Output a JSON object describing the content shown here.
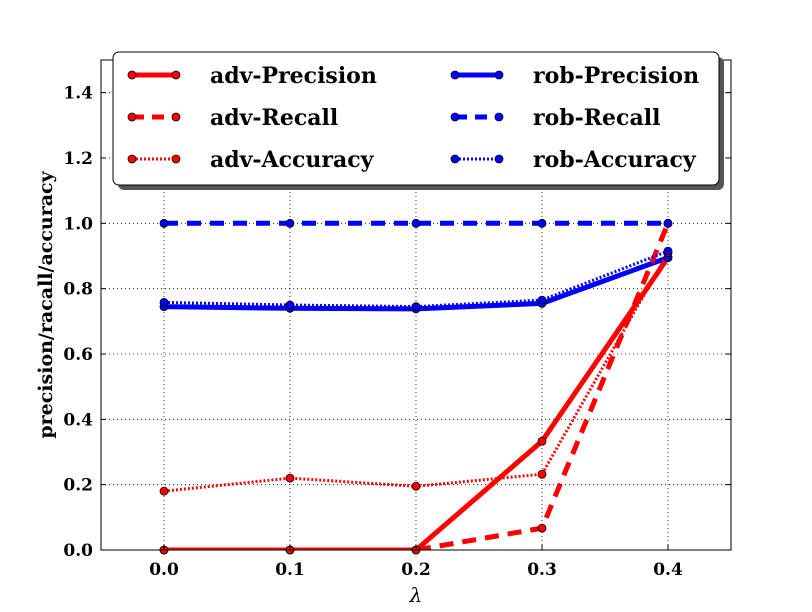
{
  "chart_data": {
    "type": "line",
    "title": "",
    "xlabel": "λ",
    "ylabel": "precision/racall/accuracy",
    "x": [
      0.0,
      0.1,
      0.2,
      0.3,
      0.4
    ],
    "xlim": [
      -0.05,
      0.45
    ],
    "ylim": [
      0.0,
      1.5
    ],
    "xticks": [
      "0.0",
      "0.1",
      "0.2",
      "0.3",
      "0.4"
    ],
    "yticks": [
      "0.0",
      "0.2",
      "0.4",
      "0.6",
      "0.8",
      "1.0",
      "1.2",
      "1.4"
    ],
    "grid": true,
    "legend_position": "top",
    "series": [
      {
        "name": "adv-Precision",
        "color": "#ff0000",
        "style": "solid",
        "values": [
          0.0,
          0.0,
          0.0,
          0.333,
          0.895
        ]
      },
      {
        "name": "rob-Precision",
        "color": "#0000ff",
        "style": "solid",
        "values": [
          0.745,
          0.74,
          0.738,
          0.755,
          0.895
        ]
      },
      {
        "name": "adv-Recall",
        "color": "#ff0000",
        "style": "dashed",
        "values": [
          0.0,
          0.0,
          0.0,
          0.067,
          1.0
        ]
      },
      {
        "name": "rob-Recall",
        "color": "#0000ff",
        "style": "dashed",
        "values": [
          1.0,
          1.0,
          1.0,
          1.0,
          1.0
        ]
      },
      {
        "name": "adv-Accuracy",
        "color": "#ff0000",
        "style": "dotted",
        "values": [
          0.18,
          0.22,
          0.195,
          0.232,
          0.91
        ]
      },
      {
        "name": "rob-Accuracy",
        "color": "#0000ff",
        "style": "dotted",
        "values": [
          0.758,
          0.75,
          0.745,
          0.765,
          0.915
        ]
      }
    ]
  }
}
